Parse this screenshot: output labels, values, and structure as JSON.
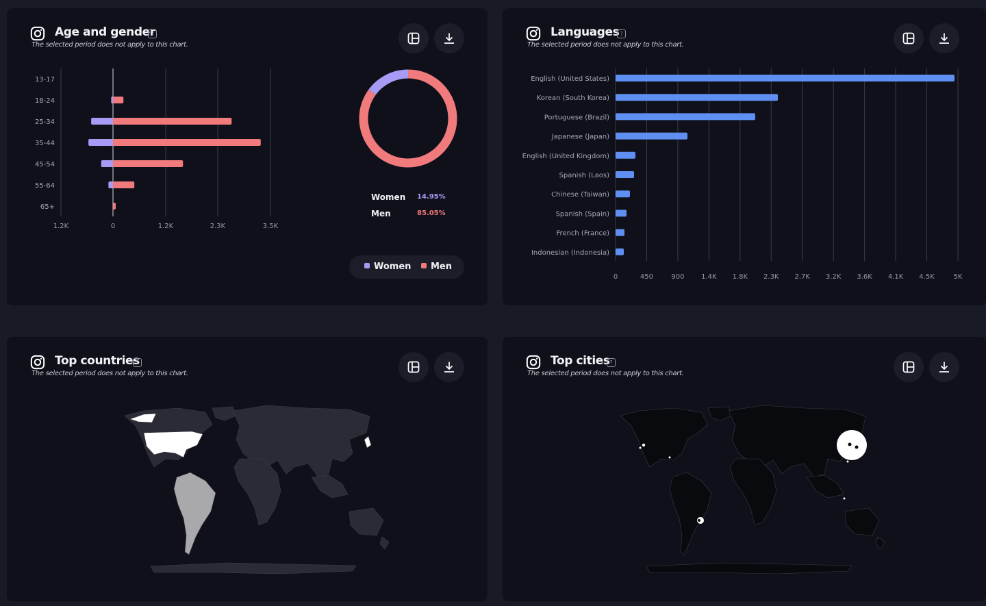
{
  "colors": {
    "women": "#a69cf5",
    "men": "#f07a7c",
    "languages": "#5f8ff2",
    "map_highlight": "#ffffff",
    "map_secondary": "#a9a9ab",
    "map_land": "#2a2b34",
    "map_land_dark": "#090a0e"
  },
  "age_gender": {
    "title": "Age and gender",
    "subtitle": "The selected period does not apply to this chart.",
    "icon": "instagram-icon",
    "legend": {
      "women": "Women",
      "men": "Men"
    },
    "breakdown": [
      {
        "label": "Women",
        "value": "14.95%"
      },
      {
        "label": "Men",
        "value": "85.05%"
      }
    ]
  },
  "languages": {
    "title": "Languages",
    "subtitle": "The selected period does not apply to this chart.",
    "icon": "instagram-icon"
  },
  "top_countries": {
    "title": "Top countries",
    "subtitle": "The selected period does not apply to this chart.",
    "icon": "instagram-icon"
  },
  "top_cities": {
    "title": "Top cities",
    "subtitle": "The selected period does not apply to this chart.",
    "icon": "instagram-icon"
  },
  "buttons": {
    "layout": "layout-icon",
    "download": "download-icon"
  },
  "chart_data": [
    {
      "type": "bar",
      "orientation": "horizontal",
      "categories": [
        "13-17",
        "18-24",
        "25-34",
        "35-44",
        "45-54",
        "55-64",
        "65+"
      ],
      "series": [
        {
          "name": "Women",
          "values": [
            0,
            -40,
            -480,
            -540,
            -260,
            -100,
            0
          ]
        },
        {
          "name": "Men",
          "values": [
            0,
            230,
            2610,
            3250,
            1540,
            470,
            60
          ]
        }
      ],
      "x_ticks": [
        "1.2K",
        "0",
        "1.2K",
        "2.3K",
        "3.5K"
      ],
      "xlim": [
        -1150,
        3450
      ],
      "grid": true,
      "legend": "bottom-right"
    },
    {
      "type": "pie",
      "style": "donut",
      "series": [
        {
          "name": "Women",
          "value": 14.95
        },
        {
          "name": "Men",
          "value": 85.05
        }
      ]
    },
    {
      "type": "bar",
      "orientation": "horizontal",
      "categories": [
        "English (United States)",
        "Korean (South Korea)",
        "Portuguese (Brazil)",
        "Japanese (Japan)",
        "English (United Kingdom)",
        "Spanish (Laos)",
        "Chinese (Taiwan)",
        "Spanish (Spain)",
        "French (France)",
        "Indonesian (Indonesia)"
      ],
      "values": [
        4950,
        2370,
        2040,
        1050,
        290,
        270,
        210,
        160,
        130,
        120
      ],
      "x_ticks": [
        "0",
        "450",
        "900",
        "1.4K",
        "1.8K",
        "2.3K",
        "2.7K",
        "3.2K",
        "3.6K",
        "4.1K",
        "4.5K",
        "5K"
      ],
      "xlim": [
        0,
        5000
      ],
      "grid": true
    }
  ]
}
